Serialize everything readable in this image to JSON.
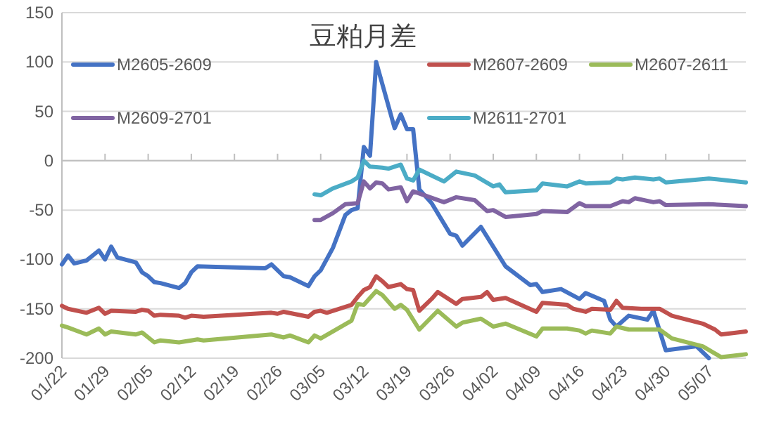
{
  "chart_data": {
    "type": "line",
    "title": "豆粕月差",
    "xlim": [
      "--01-22",
      "--05-13"
    ],
    "xticks": [
      {
        "value": "--01-22",
        "label": "01/22"
      },
      {
        "value": "--01-29",
        "label": "01/29"
      },
      {
        "value": "--02-05",
        "label": "02/05"
      },
      {
        "value": "--02-12",
        "label": "02/12"
      },
      {
        "value": "--02-19",
        "label": "02/19"
      },
      {
        "value": "--02-26",
        "label": "02/26"
      },
      {
        "value": "--03-05",
        "label": "03/05"
      },
      {
        "value": "--03-12",
        "label": "03/12"
      },
      {
        "value": "--03-19",
        "label": "03/19"
      },
      {
        "value": "--03-26",
        "label": "03/26"
      },
      {
        "value": "--04-02",
        "label": "04/02"
      },
      {
        "value": "--04-09",
        "label": "04/09"
      },
      {
        "value": "--04-16",
        "label": "04/16"
      },
      {
        "value": "--04-23",
        "label": "04/23"
      },
      {
        "value": "--04-30",
        "label": "04/30"
      },
      {
        "value": "--05-07",
        "label": "05/07"
      }
    ],
    "ylim": [
      -200,
      150
    ],
    "yticks": [
      -200,
      -150,
      -100,
      -50,
      0,
      50,
      100,
      150
    ],
    "grid": "y",
    "legend": "top",
    "marker": "none",
    "line_style": "solid",
    "series": [
      {
        "name": "M2605-2609",
        "color": "#4472c4",
        "x": [
          "--01-22",
          "--01-23",
          "--01-24",
          "--01-26",
          "--01-28",
          "--01-29",
          "--01-30",
          "--01-31",
          "--02-03",
          "--02-04",
          "--02-05",
          "--02-06",
          "--02-07",
          "--02-10",
          "--02-11",
          "--02-12",
          "--02-13",
          "--02-24",
          "--02-25",
          "--02-27",
          "--02-28",
          "--03-03",
          "--03-04",
          "--03-05",
          "--03-07",
          "--03-09",
          "--03-10",
          "--03-11",
          "--03-12",
          "--03-13",
          "--03-14",
          "--03-17",
          "--03-18",
          "--03-19",
          "--03-20",
          "--03-21",
          "--03-23",
          "--03-26",
          "--03-27",
          "--03-28",
          "--03-31",
          "--04-04",
          "--04-08",
          "--04-09",
          "--04-10",
          "--04-13",
          "--04-16",
          "--04-17",
          "--04-20",
          "--04-21",
          "--04-22",
          "--04-24",
          "--04-27",
          "--04-28",
          "--04-30",
          "--05-05",
          "--05-07"
        ],
        "values": [
          -105,
          -96,
          -104,
          -101,
          -91,
          -100,
          -87,
          -98,
          -103,
          -113,
          -117,
          -123,
          -124,
          -129,
          -124,
          -113,
          -107,
          -109,
          -105,
          -117,
          -118,
          -127,
          -117,
          -111,
          -88,
          -55,
          -50,
          -48,
          14,
          5,
          100,
          33,
          47,
          32,
          32,
          -29,
          -43,
          -74,
          -76,
          -86,
          -67,
          -107,
          -126,
          -125,
          -133,
          -130,
          -140,
          -134,
          -142,
          -161,
          -168,
          -157,
          -161,
          -152,
          -192,
          -188,
          -200
        ]
      },
      {
        "name": "M2607-2609",
        "color": "#c0504d",
        "x": [
          "--01-22",
          "--01-23",
          "--01-26",
          "--01-28",
          "--01-29",
          "--01-30",
          "--02-03",
          "--02-04",
          "--02-05",
          "--02-06",
          "--02-07",
          "--02-10",
          "--02-11",
          "--02-12",
          "--02-14",
          "--02-25",
          "--02-26",
          "--02-27",
          "--03-03",
          "--03-04",
          "--03-05",
          "--03-06",
          "--03-10",
          "--03-11",
          "--03-12",
          "--03-13",
          "--03-14",
          "--03-15",
          "--03-16",
          "--03-18",
          "--03-19",
          "--03-20",
          "--03-21",
          "--03-23",
          "--03-24",
          "--03-27",
          "--03-28",
          "--03-31",
          "--04-01",
          "--04-02",
          "--04-04",
          "--04-09",
          "--04-10",
          "--04-14",
          "--04-15",
          "--04-17",
          "--04-18",
          "--04-21",
          "--04-22",
          "--04-23",
          "--04-26",
          "--04-29",
          "--05-01",
          "--05-06",
          "--05-08",
          "--05-09",
          "--05-13"
        ],
        "values": [
          -147,
          -150,
          -154,
          -149,
          -155,
          -152,
          -153,
          -151,
          -152,
          -157,
          -156,
          -157,
          -159,
          -157,
          -158,
          -154,
          -155,
          -153,
          -158,
          -153,
          -152,
          -154,
          -146,
          -138,
          -131,
          -128,
          -117,
          -122,
          -128,
          -125,
          -130,
          -131,
          -152,
          -140,
          -133,
          -145,
          -140,
          -138,
          -133,
          -141,
          -139,
          -153,
          -144,
          -146,
          -150,
          -153,
          -150,
          -151,
          -142,
          -149,
          -150,
          -150,
          -157,
          -165,
          -171,
          -176,
          -173
        ]
      },
      {
        "name": "M2607-2611",
        "color": "#9bbb59",
        "x": [
          "--01-22",
          "--01-23",
          "--01-26",
          "--01-28",
          "--01-29",
          "--01-30",
          "--02-03",
          "--02-04",
          "--02-06",
          "--02-07",
          "--02-10",
          "--02-12",
          "--02-13",
          "--02-14",
          "--02-25",
          "--02-27",
          "--02-28",
          "--03-03",
          "--03-04",
          "--03-05",
          "--03-10",
          "--03-11",
          "--03-12",
          "--03-14",
          "--03-15",
          "--03-17",
          "--03-18",
          "--03-19",
          "--03-21",
          "--03-24",
          "--03-27",
          "--03-28",
          "--03-31",
          "--04-02",
          "--04-04",
          "--04-09",
          "--04-10",
          "--04-14",
          "--04-16",
          "--04-17",
          "--04-18",
          "--04-21",
          "--04-22",
          "--04-24",
          "--04-29",
          "--05-01",
          "--05-06",
          "--05-09",
          "--05-13"
        ],
        "values": [
          -167,
          -169,
          -176,
          -170,
          -176,
          -173,
          -176,
          -174,
          -184,
          -182,
          -184,
          -182,
          -181,
          -182,
          -176,
          -179,
          -177,
          -184,
          -177,
          -180,
          -162,
          -145,
          -146,
          -132,
          -136,
          -150,
          -146,
          -151,
          -171,
          -152,
          -168,
          -164,
          -160,
          -168,
          -165,
          -178,
          -170,
          -170,
          -172,
          -175,
          -172,
          -175,
          -168,
          -171,
          -171,
          -180,
          -188,
          -199,
          -196
        ]
      },
      {
        "name": "M2609-2701",
        "color": "#8064a2",
        "x": [
          "--03-04",
          "--03-05",
          "--03-07",
          "--03-09",
          "--03-11",
          "--03-12",
          "--03-13",
          "--03-14",
          "--03-15",
          "--03-16",
          "--03-18",
          "--03-19",
          "--03-20",
          "--03-25",
          "--03-27",
          "--03-30",
          "--04-01",
          "--04-02",
          "--04-04",
          "--04-09",
          "--04-10",
          "--04-14",
          "--04-16",
          "--04-17",
          "--04-21",
          "--04-23",
          "--04-24",
          "--04-25",
          "--04-28",
          "--04-29",
          "--04-30",
          "--05-07",
          "--05-13"
        ],
        "values": [
          -60,
          -60,
          -53,
          -44,
          -43,
          -21,
          -28,
          -22,
          -23,
          -29,
          -27,
          -41,
          -31,
          -42,
          -37,
          -40,
          -51,
          -50,
          -57,
          -54,
          -51,
          -52,
          -43,
          -46,
          -46,
          -41,
          -42,
          -38,
          -42,
          -41,
          -45,
          -44,
          -46
        ]
      },
      {
        "name": "M2611-2701",
        "color": "#4bacc6",
        "x": [
          "--03-04",
          "--03-05",
          "--03-07",
          "--03-10",
          "--03-11",
          "--03-12",
          "--03-13",
          "--03-15",
          "--03-16",
          "--03-18",
          "--03-19",
          "--03-20",
          "--03-21",
          "--03-25",
          "--03-27",
          "--03-30",
          "--04-02",
          "--04-03",
          "--04-04",
          "--04-09",
          "--04-10",
          "--04-14",
          "--04-16",
          "--04-17",
          "--04-21",
          "--04-22",
          "--04-23",
          "--04-25",
          "--04-28",
          "--04-29",
          "--04-30",
          "--05-07",
          "--05-13"
        ],
        "values": [
          -34,
          -35,
          -28,
          -21,
          -17,
          0,
          -6,
          -7,
          -8,
          -4,
          -18,
          -20,
          -9,
          -21,
          -11,
          -15,
          -26,
          -24,
          -32,
          -30,
          -23,
          -26,
          -21,
          -23,
          -22,
          -18,
          -19,
          -17,
          -19,
          -18,
          -22,
          -18,
          -22
        ]
      }
    ]
  }
}
